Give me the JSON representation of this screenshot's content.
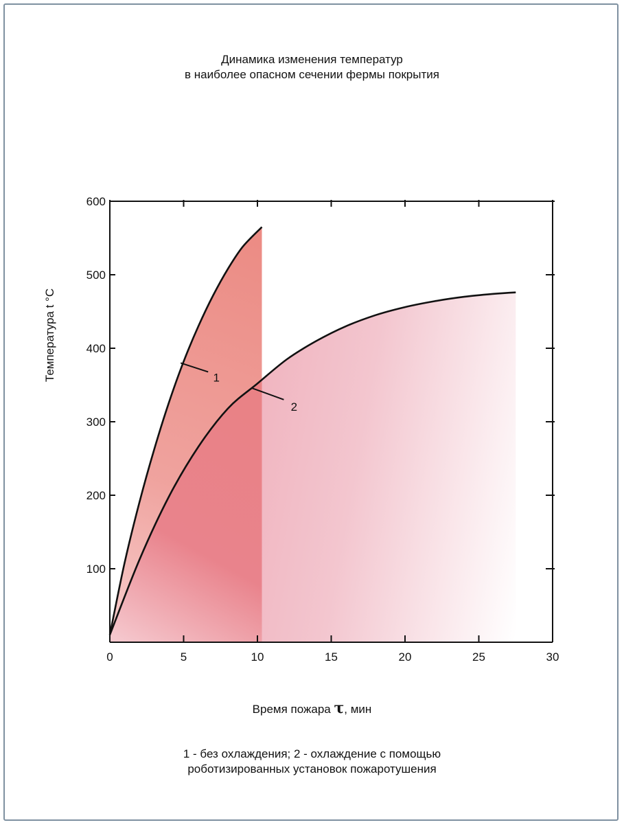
{
  "title_lines": [
    "Динамика изменения температур",
    "в наиболее опасном сечении фермы покрытия"
  ],
  "footnote_lines": [
    "1 - без охлаждения; 2 - охлаждение с помощью",
    "роботизированных установок пожаротушения"
  ],
  "chart_data": {
    "type": "area",
    "title": "Динамика изменения температур в наиболее опасном сечении фермы покрытия",
    "xlabel_text": "Время пожара",
    "xlabel_symbol": "τ",
    "xlabel_unit": ", мин",
    "ylabel": "Температура t °C",
    "xlim": [
      0,
      30
    ],
    "ylim": [
      0,
      600
    ],
    "x_ticks": [
      0,
      5,
      10,
      15,
      20,
      25,
      30
    ],
    "y_ticks": [
      100,
      200,
      300,
      400,
      500,
      600
    ],
    "grid": false,
    "series": [
      {
        "name": "1",
        "color": "#ec8f88",
        "x": [
          0,
          1,
          2,
          3,
          4,
          5,
          6,
          7,
          8,
          9,
          10.3
        ],
        "y": [
          10,
          108,
          190,
          262,
          326,
          382,
          430,
          472,
          508,
          538,
          565
        ]
      },
      {
        "name": "2",
        "color": "#f2bec6",
        "x": [
          0,
          2,
          4,
          6,
          8,
          10,
          12,
          14,
          16,
          18,
          20,
          22,
          24,
          26,
          27.5
        ],
        "y": [
          10,
          112,
          198,
          266,
          318,
          352,
          385,
          410,
          430,
          445,
          456,
          464,
          470,
          474,
          476
        ]
      }
    ],
    "annotations": [
      "1",
      "2"
    ]
  }
}
